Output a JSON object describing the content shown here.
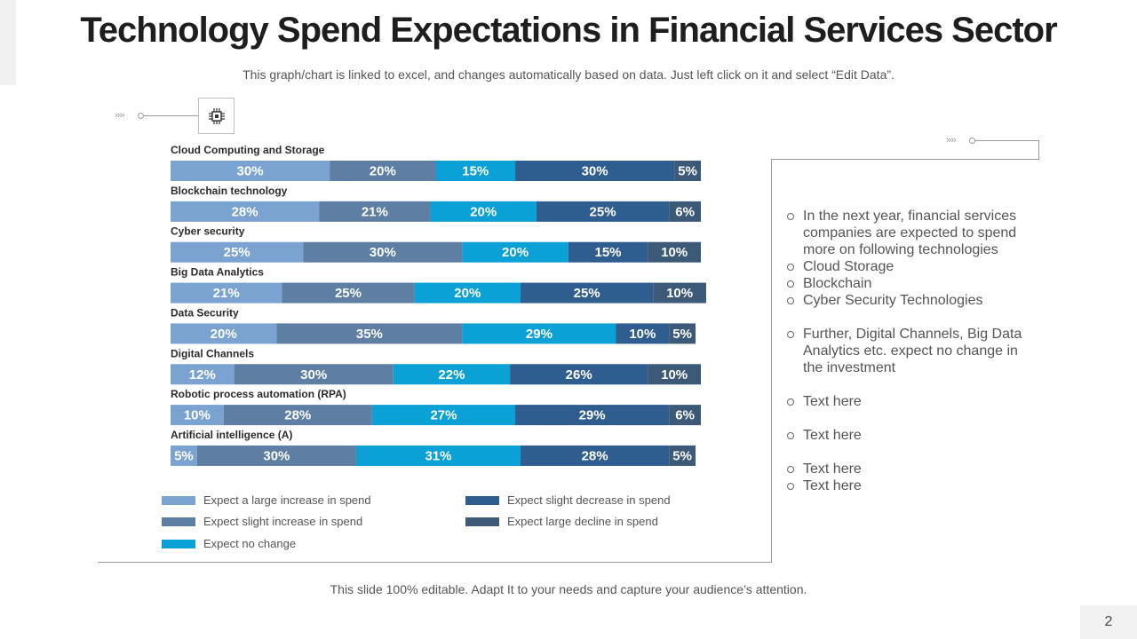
{
  "title": "Technology Spend Expectations in Financial Services Sector",
  "subtitle": "This graph/chart is linked to excel, and changes automatically based on data. Just left click on it and select “Edit Data”.",
  "footer": "This slide 100% editable. Adapt  It to your needs and capture your audience’s attention.",
  "page_number": "2",
  "decor": {
    "arrow_glyph": "››››",
    "icon": "circuit-chip-icon"
  },
  "colors": {
    "large_increase": "#7ba3d1",
    "slight_increase": "#5e7fa3",
    "no_change": "#0ba0d6",
    "slight_decrease": "#2f5d8f",
    "large_decline": "#3c5a78"
  },
  "chart_data": {
    "type": "bar",
    "orientation": "horizontal",
    "stacked": "100%",
    "categories": [
      "Cloud Computing  and Storage",
      "Blockchain technology",
      "Cyber security",
      "Big Data Analytics",
      "Data Security",
      "Digital Channels",
      "Robotic process automation (RPA)",
      "Artificial intelligence (A)"
    ],
    "series": [
      {
        "name": "Expect a large increase in spend",
        "values": [
          30,
          28,
          25,
          21,
          20,
          12,
          10,
          5
        ]
      },
      {
        "name": "Expect slight increase in spend",
        "values": [
          20,
          21,
          30,
          25,
          35,
          30,
          28,
          30
        ]
      },
      {
        "name": "Expect no change",
        "values": [
          15,
          20,
          20,
          20,
          29,
          22,
          27,
          31
        ]
      },
      {
        "name": "Expect slight decrease in spend",
        "values": [
          30,
          25,
          15,
          25,
          10,
          26,
          29,
          28
        ]
      },
      {
        "name": "Expect large decline in spend",
        "values": [
          5,
          6,
          10,
          10,
          5,
          10,
          6,
          5
        ]
      }
    ],
    "value_suffix": "%",
    "xlim": [
      0,
      100
    ],
    "legend_position": "bottom"
  },
  "bullets": [
    "In the next year, financial services companies are expected to spend more on following technologies",
    "Cloud Storage",
    "Blockchain",
    "Cyber Security Technologies",
    "Further, Digital Channels, Big Data Analytics etc. expect no change in the investment",
    "Text here",
    "Text here",
    "Text here",
    "Text here"
  ]
}
